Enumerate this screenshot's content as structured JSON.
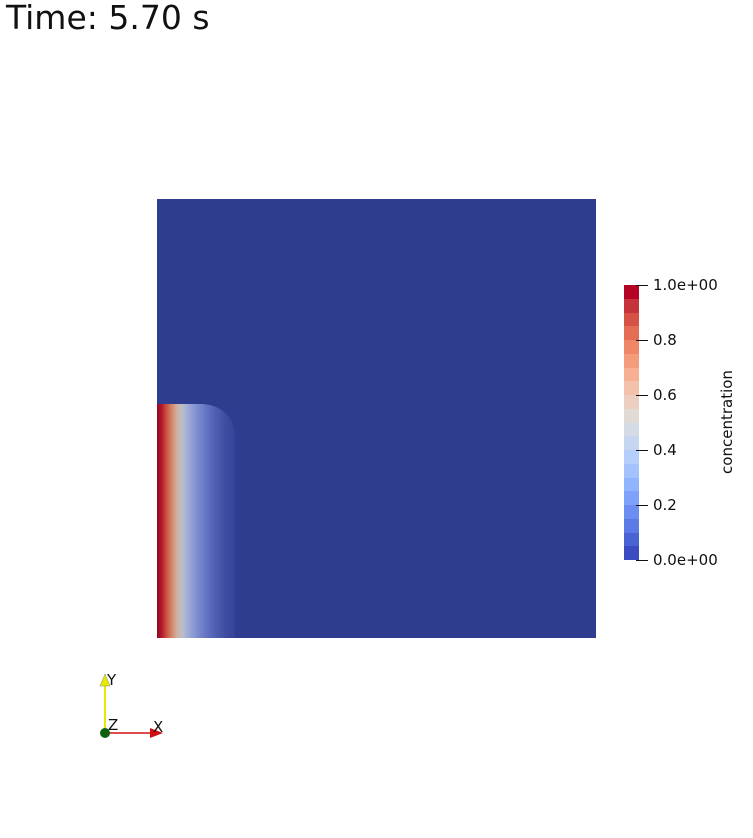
{
  "time_label": "Time: 5.70 s",
  "colorbar": {
    "title": "concentration",
    "ticks": [
      "1.0e+00",
      "0.8",
      "0.6",
      "0.4",
      "0.2",
      "0.0e+00"
    ],
    "tick_values": [
      1.0,
      0.8,
      0.6,
      0.4,
      0.2,
      0.0
    ],
    "range": [
      0,
      1
    ],
    "colormap": "Cool to Warm",
    "bands": [
      "#3b4cc0",
      "#4a63d3",
      "#5b7ae5",
      "#6c8ef0",
      "#7ea1f9",
      "#91b4fe",
      "#a3c2fe",
      "#b5cefb",
      "#c6d6f1",
      "#d5dbe5",
      "#e2dad5",
      "#edcfc1",
      "#f4c2aa",
      "#f7b093",
      "#f59c7d",
      "#ef8668",
      "#e46e55",
      "#d65244",
      "#c5343a",
      "#b40426"
    ]
  },
  "axes": {
    "x": "X",
    "y": "Y",
    "z": "Z",
    "x_color": "#d01010",
    "y_color": "#e8e800",
    "z_color": "#106010"
  }
}
